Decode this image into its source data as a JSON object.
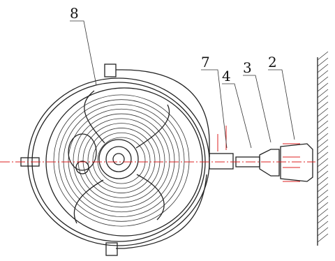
{
  "callouts": [
    {
      "label": "8"
    },
    {
      "label": "7"
    },
    {
      "label": "4"
    },
    {
      "label": "3"
    },
    {
      "label": "2"
    }
  ]
}
